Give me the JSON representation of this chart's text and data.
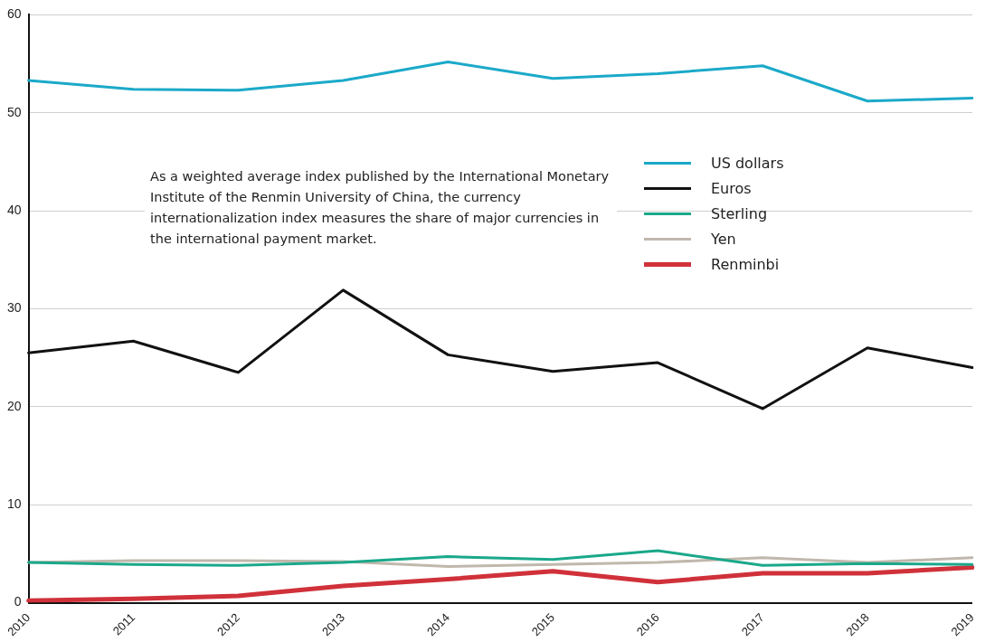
{
  "chart_data": {
    "type": "line",
    "categories": [
      "2010",
      "2011",
      "2012",
      "2013",
      "2014",
      "2015",
      "2016",
      "2017",
      "2018",
      "2019"
    ],
    "series": [
      {
        "name": "US dollars",
        "color": "#1ba9c9",
        "values": [
          53.3,
          52.4,
          52.3,
          53.3,
          55.2,
          53.5,
          54.0,
          54.8,
          51.2,
          51.5
        ]
      },
      {
        "name": "Euros",
        "color": "#111111",
        "values": [
          25.5,
          26.7,
          23.5,
          31.9,
          25.3,
          23.6,
          24.5,
          19.8,
          26.0,
          24.0
        ]
      },
      {
        "name": "Sterling",
        "color": "#1aa88a",
        "values": [
          4.1,
          3.9,
          3.8,
          4.1,
          4.7,
          4.4,
          5.3,
          3.8,
          4.0,
          3.9
        ]
      },
      {
        "name": "Yen",
        "color": "#c0b8ad",
        "values": [
          4.1,
          4.3,
          4.3,
          4.2,
          3.7,
          3.9,
          4.1,
          4.6,
          4.1,
          4.6
        ]
      },
      {
        "name": "Renminbi",
        "color": "#d0313a",
        "values": [
          0.2,
          0.4,
          0.7,
          1.7,
          2.4,
          3.2,
          2.1,
          3.0,
          3.0,
          3.6
        ]
      }
    ],
    "ylim": [
      0,
      60
    ],
    "yticks": [
      0,
      10,
      20,
      30,
      40,
      50,
      60
    ],
    "grid": "y",
    "legend": "top right",
    "marker": "none",
    "line_style": "solid",
    "annotations": [
      "As a weighted average index published by the International Monetary Institute of the Renmin University of China, the currency internationalization index measures the share of major currencies in the international payment market."
    ]
  }
}
